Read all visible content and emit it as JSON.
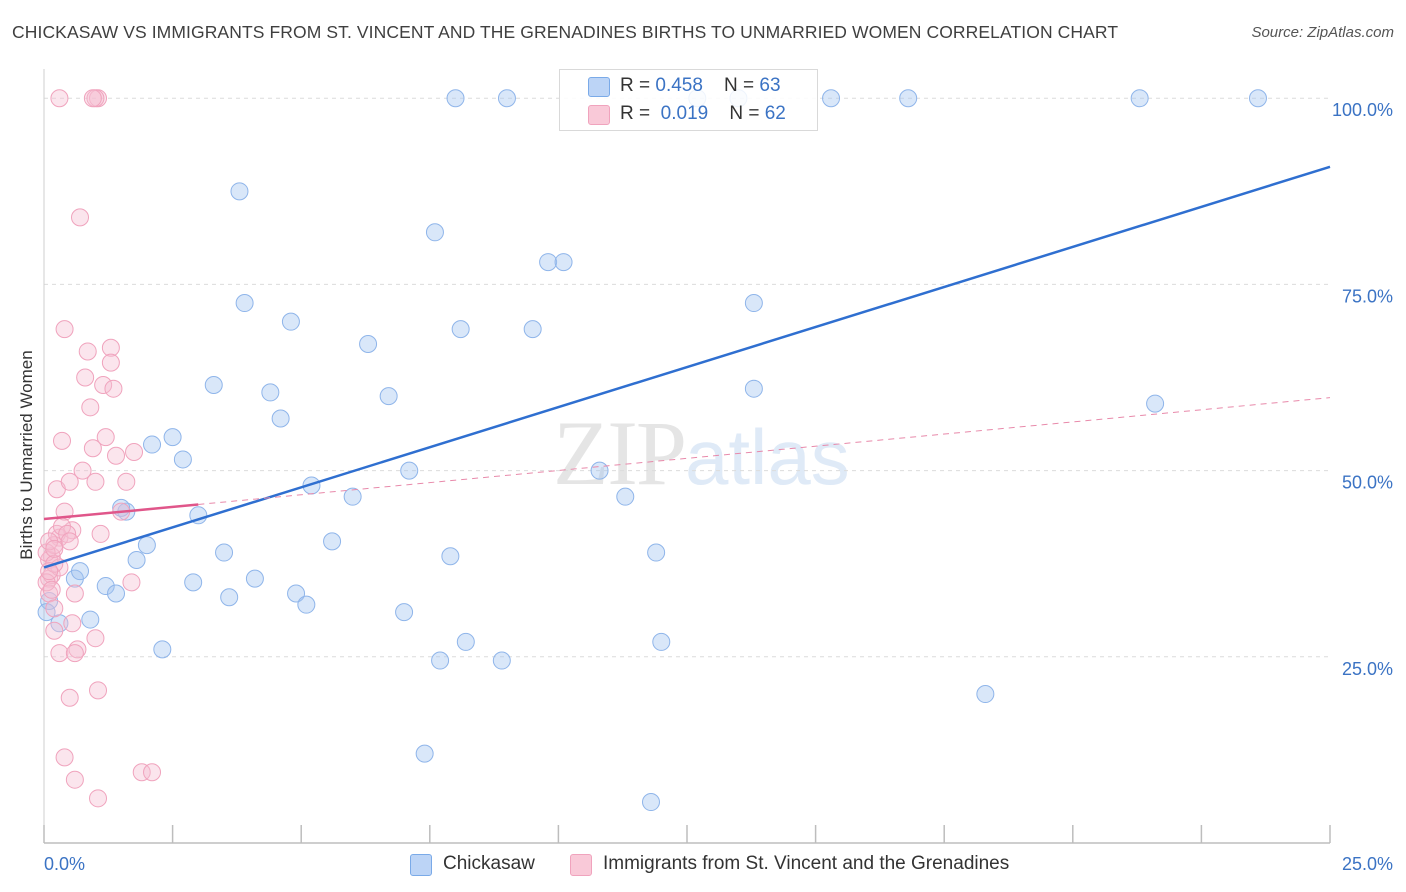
{
  "title": "CHICKASAW VS IMMIGRANTS FROM ST. VINCENT AND THE GRENADINES BIRTHS TO UNMARRIED WOMEN CORRELATION CHART",
  "source": "Source: ZipAtlas.com",
  "watermark": {
    "zip": "ZIP",
    "atlas": "atlas"
  },
  "legend": {
    "series1": {
      "r_label": "R = ",
      "r_value": "0.458",
      "n_label": "N = ",
      "n_value": "63"
    },
    "series2": {
      "r_label": "R = ",
      "r_value": "0.019",
      "n_label": "N = ",
      "n_value": "62"
    }
  },
  "colors": {
    "blue": "#7aaae8",
    "blue_line": "#2f6fd0",
    "pink": "#f0a3bd",
    "pink_line": "#e0568a",
    "tick_text": "#3b73c4"
  },
  "chart_data": {
    "type": "scatter",
    "title": "CHICKASAW VS IMMIGRANTS FROM ST. VINCENT AND THE GRENADINES BIRTHS TO UNMARRIED WOMEN CORRELATION CHART",
    "xlabel": "",
    "ylabel": "Births to Unmarried Women",
    "xlim": [
      0,
      25
    ],
    "ylim": [
      0,
      105
    ],
    "x_tick_labels": [
      "0.0%",
      "25.0%"
    ],
    "y_ticks": [
      25,
      50,
      75,
      100
    ],
    "y_tick_labels": [
      "25.0%",
      "50.0%",
      "75.0%",
      "100.0%"
    ],
    "grid": true,
    "legend_position": "top-center",
    "series": [
      {
        "name": "Chickasaw",
        "color": "#7aaae8",
        "trend": {
          "x": [
            0,
            25
          ],
          "y": [
            37.0,
            90.8
          ]
        },
        "points": [
          [
            0.1,
            32.5
          ],
          [
            0.3,
            29.5
          ],
          [
            0.6,
            35.5
          ],
          [
            0.7,
            36.5
          ],
          [
            0.9,
            30.0
          ],
          [
            1.2,
            34.5
          ],
          [
            1.4,
            33.5
          ],
          [
            1.6,
            44.5
          ],
          [
            1.8,
            38.0
          ],
          [
            2.0,
            40.0
          ],
          [
            2.1,
            53.5
          ],
          [
            2.3,
            26.0
          ],
          [
            2.5,
            54.5
          ],
          [
            2.7,
            51.5
          ],
          [
            2.9,
            35.0
          ],
          [
            3.0,
            44.0
          ],
          [
            3.3,
            61.5
          ],
          [
            3.5,
            39.0
          ],
          [
            3.6,
            33.0
          ],
          [
            3.8,
            87.5
          ],
          [
            3.9,
            72.5
          ],
          [
            4.1,
            35.5
          ],
          [
            4.4,
            60.5
          ],
          [
            4.6,
            57.0
          ],
          [
            4.8,
            70.0
          ],
          [
            4.9,
            33.5
          ],
          [
            5.1,
            32.0
          ],
          [
            5.2,
            48.0
          ],
          [
            5.6,
            40.5
          ],
          [
            6.0,
            46.5
          ],
          [
            6.3,
            67.0
          ],
          [
            6.7,
            60.0
          ],
          [
            7.0,
            31.0
          ],
          [
            7.1,
            50.0
          ],
          [
            7.4,
            12.0
          ],
          [
            7.6,
            82.0
          ],
          [
            7.7,
            24.5
          ],
          [
            7.9,
            38.5
          ],
          [
            8.1,
            69.0
          ],
          [
            8.2,
            27.0
          ],
          [
            8.0,
            100
          ],
          [
            9.0,
            100
          ],
          [
            8.9,
            24.5
          ],
          [
            9.5,
            69.0
          ],
          [
            9.8,
            78.0
          ],
          [
            10.1,
            78.0
          ],
          [
            10.8,
            50.0
          ],
          [
            11.3,
            46.5
          ],
          [
            11.8,
            5.5
          ],
          [
            11.9,
            39.0
          ],
          [
            12.0,
            27.0
          ],
          [
            12.7,
            100
          ],
          [
            13.5,
            100
          ],
          [
            13.8,
            72.5
          ],
          [
            13.8,
            61.0
          ],
          [
            15.3,
            100
          ],
          [
            16.8,
            100
          ],
          [
            18.3,
            20.0
          ],
          [
            21.3,
            100
          ],
          [
            21.6,
            59.0
          ],
          [
            23.6,
            100
          ],
          [
            0.05,
            31.0
          ],
          [
            1.5,
            45.0
          ]
        ]
      },
      {
        "name": "Immigrants from St. Vincent and the Grenadines",
        "color": "#f0a3bd",
        "trend": {
          "x": [
            0,
            25
          ],
          "y": [
            43.5,
            59.8
          ]
        },
        "points": [
          [
            0.1,
            35.5
          ],
          [
            0.1,
            33.5
          ],
          [
            0.15,
            38.5
          ],
          [
            0.2,
            28.5
          ],
          [
            0.2,
            31.5
          ],
          [
            0.25,
            47.5
          ],
          [
            0.3,
            41.0
          ],
          [
            0.3,
            25.5
          ],
          [
            0.35,
            54.0
          ],
          [
            0.4,
            44.5
          ],
          [
            0.4,
            11.5
          ],
          [
            0.4,
            69.0
          ],
          [
            0.5,
            48.5
          ],
          [
            0.5,
            19.5
          ],
          [
            0.55,
            42.0
          ],
          [
            0.6,
            33.5
          ],
          [
            0.6,
            8.5
          ],
          [
            0.65,
            26.0
          ],
          [
            0.7,
            84.0
          ],
          [
            0.75,
            50.0
          ],
          [
            0.8,
            62.5
          ],
          [
            0.85,
            66.0
          ],
          [
            0.9,
            58.5
          ],
          [
            0.95,
            53.0
          ],
          [
            1.0,
            48.5
          ],
          [
            1.0,
            27.5
          ],
          [
            1.05,
            20.5
          ],
          [
            1.05,
            6.0
          ],
          [
            1.1,
            41.5
          ],
          [
            1.15,
            61.5
          ],
          [
            1.2,
            54.5
          ],
          [
            1.3,
            66.5
          ],
          [
            1.3,
            64.5
          ],
          [
            1.35,
            61.0
          ],
          [
            1.4,
            52.0
          ],
          [
            1.5,
            44.5
          ],
          [
            1.6,
            48.5
          ],
          [
            1.7,
            35.0
          ],
          [
            1.75,
            52.5
          ],
          [
            1.9,
            9.5
          ],
          [
            2.1,
            9.5
          ],
          [
            0.1,
            38.0
          ],
          [
            0.15,
            36.0
          ],
          [
            0.2,
            40.0
          ],
          [
            0.25,
            41.5
          ],
          [
            0.3,
            37.0
          ],
          [
            0.35,
            42.5
          ],
          [
            0.45,
            41.5
          ],
          [
            0.5,
            40.5
          ],
          [
            0.55,
            29.5
          ],
          [
            0.6,
            25.5
          ],
          [
            0.3,
            100
          ],
          [
            1.05,
            100
          ],
          [
            1.0,
            100
          ],
          [
            0.95,
            100
          ],
          [
            0.05,
            35.0
          ],
          [
            0.05,
            39.0
          ],
          [
            0.1,
            40.5
          ],
          [
            0.2,
            37.5
          ],
          [
            0.15,
            34.0
          ],
          [
            0.1,
            36.5
          ],
          [
            0.2,
            39.5
          ]
        ]
      }
    ]
  },
  "bottom_legend": {
    "series1": "Chickasaw",
    "series2": "Immigrants from St. Vincent and the Grenadines"
  }
}
